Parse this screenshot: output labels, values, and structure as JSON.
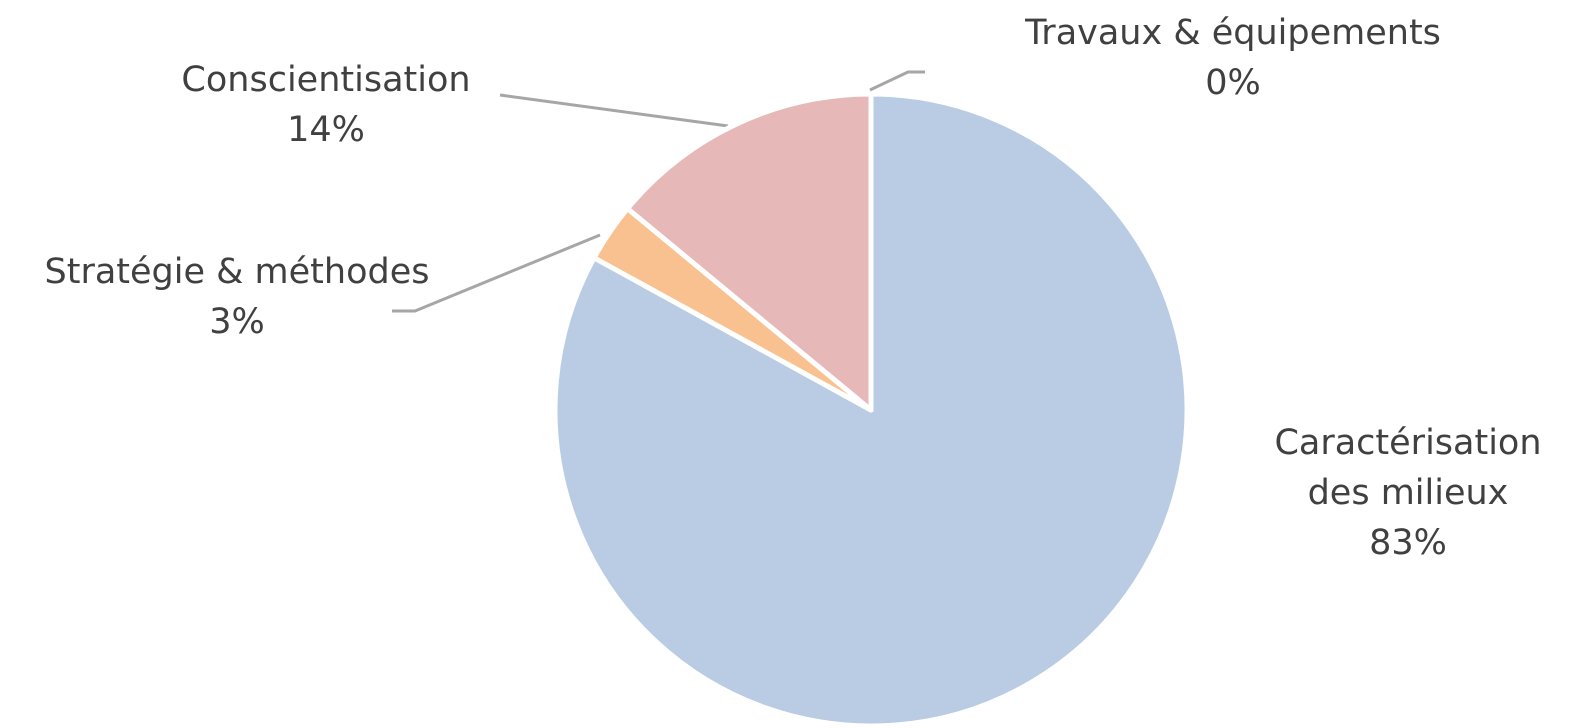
{
  "chart_data": {
    "type": "pie",
    "categories": [
      "Caractérisation des milieux",
      "Stratégie & méthodes",
      "Conscientisation",
      "Travaux & équipements"
    ],
    "values": [
      83,
      3,
      14,
      0
    ],
    "value_labels": [
      "83%",
      "3%",
      "14%",
      "0%"
    ],
    "colors": [
      "#b9cce4",
      "#f9c090",
      "#e6b8b7",
      "#c3d69b"
    ]
  }
}
